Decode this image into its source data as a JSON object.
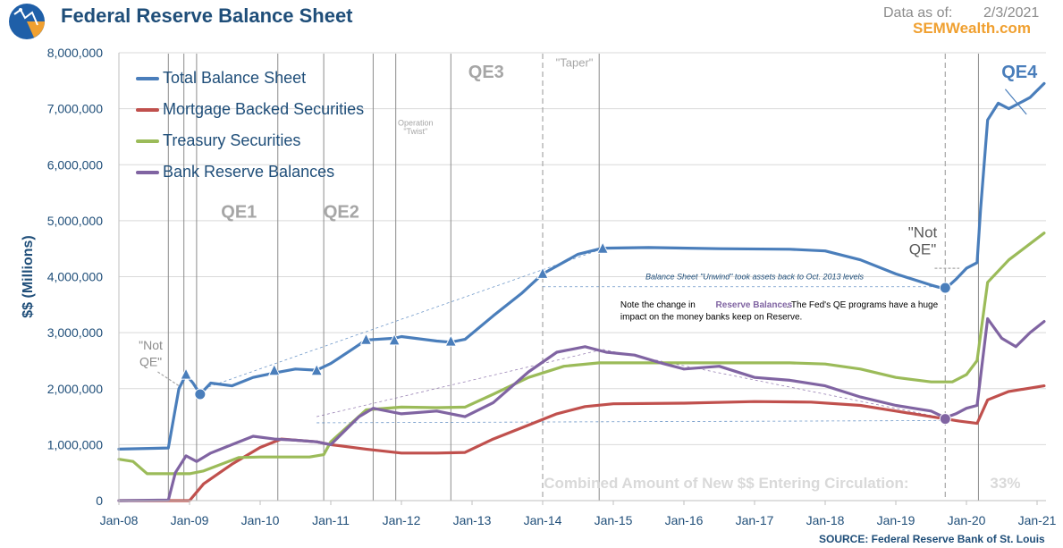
{
  "header": {
    "title": "Federal Reserve Balance Sheet",
    "asof_label": "Data as of:",
    "asof_date": "2/3/2021",
    "brand": "SEMWealth.com",
    "source": "SOURCE:  Federal Reserve Bank of St. Louis",
    "logo_icon": "globe-chart-logo-icon"
  },
  "colors": {
    "total": "#4a7ebb",
    "mbs": "#c0504d",
    "treasury": "#9bbb59",
    "reserves": "#8064a2",
    "accent_text": "#1f4e79",
    "annot_gray": "#a6a6a6",
    "brand": "#f0a030"
  },
  "chart_data": {
    "type": "line",
    "title": "Federal Reserve Balance Sheet",
    "ylabel": "$$ (Millions)",
    "xlabel": "",
    "ylim": [
      0,
      8000000
    ],
    "xlim": [
      2008.0,
      2021.1
    ],
    "yticks": [
      0,
      1000000,
      2000000,
      3000000,
      4000000,
      5000000,
      6000000,
      7000000,
      8000000
    ],
    "ytick_labels": [
      "0",
      "1,000,000",
      "2,000,000",
      "3,000,000",
      "4,000,000",
      "5,000,000",
      "6,000,000",
      "7,000,000",
      "8,000,000"
    ],
    "xticks": [
      2008,
      2009,
      2010,
      2011,
      2012,
      2013,
      2014,
      2015,
      2016,
      2017,
      2018,
      2019,
      2020,
      2021
    ],
    "xtick_labels": [
      "Jan-08",
      "Jan-09",
      "Jan-10",
      "Jan-11",
      "Jan-12",
      "Jan-13",
      "Jan-14",
      "Jan-15",
      "Jan-16",
      "Jan-17",
      "Jan-18",
      "Jan-19",
      "Jan-20",
      "Jan-21"
    ],
    "series": [
      {
        "name": "Total Balance Sheet",
        "x": [
          2008.0,
          2008.7,
          2008.85,
          2008.95,
          2009.05,
          2009.15,
          2009.3,
          2009.6,
          2009.9,
          2010.2,
          2010.5,
          2010.8,
          2011.0,
          2011.3,
          2011.5,
          2011.9,
          2012.0,
          2012.5,
          2012.7,
          2012.9,
          2013.3,
          2013.7,
          2014.0,
          2014.5,
          2014.85,
          2015.5,
          2016.5,
          2017.5,
          2018.0,
          2018.5,
          2019.0,
          2019.5,
          2019.7,
          2019.85,
          2020.0,
          2020.15,
          2020.2,
          2020.3,
          2020.45,
          2020.6,
          2020.9,
          2021.1
        ],
        "values": [
          920000,
          940000,
          2000000,
          2250000,
          2100000,
          1900000,
          2100000,
          2050000,
          2200000,
          2280000,
          2350000,
          2330000,
          2450000,
          2700000,
          2870000,
          2900000,
          2930000,
          2850000,
          2830000,
          2880000,
          3300000,
          3700000,
          4050000,
          4400000,
          4510000,
          4520000,
          4500000,
          4490000,
          4460000,
          4300000,
          4050000,
          3850000,
          3780000,
          3950000,
          4150000,
          4250000,
          5200000,
          6800000,
          7100000,
          7000000,
          7200000,
          7450000
        ]
      },
      {
        "name": "Mortgage Backed Securities",
        "x": [
          2008.0,
          2009.0,
          2009.2,
          2009.6,
          2010.0,
          2010.3,
          2010.8,
          2011.0,
          2011.5,
          2012.0,
          2012.5,
          2012.9,
          2013.3,
          2013.8,
          2014.2,
          2014.6,
          2015.0,
          2016.0,
          2017.0,
          2017.8,
          2018.5,
          2019.0,
          2019.5,
          2019.9,
          2020.15,
          2020.3,
          2020.6,
          2021.1
        ],
        "values": [
          0,
          0,
          300000,
          650000,
          950000,
          1100000,
          1050000,
          1000000,
          920000,
          850000,
          850000,
          860000,
          1100000,
          1350000,
          1550000,
          1680000,
          1730000,
          1740000,
          1770000,
          1760000,
          1700000,
          1600000,
          1500000,
          1420000,
          1380000,
          1800000,
          1950000,
          2050000
        ]
      },
      {
        "name": "Treasury Securities",
        "x": [
          2008.0,
          2008.2,
          2008.4,
          2009.0,
          2009.2,
          2009.7,
          2010.0,
          2010.7,
          2010.9,
          2011.0,
          2011.5,
          2012.0,
          2012.5,
          2012.9,
          2013.3,
          2013.8,
          2014.3,
          2014.8,
          2015.5,
          2016.5,
          2017.5,
          2018.0,
          2018.5,
          2019.0,
          2019.5,
          2019.8,
          2020.0,
          2020.15,
          2020.3,
          2020.6,
          2021.1
        ],
        "values": [
          740000,
          700000,
          480000,
          480000,
          530000,
          770000,
          780000,
          780000,
          820000,
          1050000,
          1620000,
          1670000,
          1660000,
          1670000,
          1900000,
          2200000,
          2400000,
          2460000,
          2460000,
          2460000,
          2460000,
          2440000,
          2350000,
          2200000,
          2120000,
          2120000,
          2250000,
          2500000,
          3900000,
          4300000,
          4780000
        ]
      },
      {
        "name": "Bank Reserve Balances",
        "x": [
          2008.0,
          2008.7,
          2008.8,
          2008.95,
          2009.1,
          2009.3,
          2009.6,
          2009.9,
          2010.2,
          2010.5,
          2010.8,
          2011.0,
          2011.4,
          2011.6,
          2012.0,
          2012.5,
          2012.9,
          2013.3,
          2013.8,
          2014.2,
          2014.6,
          2014.9,
          2015.3,
          2015.7,
          2016.0,
          2016.5,
          2017.0,
          2017.5,
          2018.0,
          2018.5,
          2019.0,
          2019.5,
          2019.7,
          2019.85,
          2020.0,
          2020.15,
          2020.3,
          2020.5,
          2020.7,
          2020.9,
          2021.1
        ],
        "values": [
          0,
          10000,
          500000,
          800000,
          700000,
          850000,
          1000000,
          1150000,
          1100000,
          1080000,
          1050000,
          1000000,
          1500000,
          1650000,
          1550000,
          1600000,
          1500000,
          1750000,
          2300000,
          2650000,
          2750000,
          2650000,
          2600000,
          2450000,
          2350000,
          2400000,
          2200000,
          2150000,
          2050000,
          1850000,
          1700000,
          1600000,
          1480000,
          1550000,
          1650000,
          1700000,
          3250000,
          2900000,
          2750000,
          3000000,
          3200000
        ]
      }
    ],
    "markers": [
      {
        "series": "Total Balance Sheet",
        "x": 2008.95,
        "value": 2250000,
        "shape": "triangle"
      },
      {
        "series": "Total Balance Sheet",
        "x": 2009.15,
        "value": 1900000,
        "shape": "circle"
      },
      {
        "series": "Total Balance Sheet",
        "x": 2010.2,
        "value": 2320000,
        "shape": "triangle"
      },
      {
        "series": "Total Balance Sheet",
        "x": 2010.8,
        "value": 2320000,
        "shape": "triangle"
      },
      {
        "series": "Total Balance Sheet",
        "x": 2011.5,
        "value": 2870000,
        "shape": "triangle"
      },
      {
        "series": "Total Balance Sheet",
        "x": 2011.9,
        "value": 2860000,
        "shape": "triangle"
      },
      {
        "series": "Total Balance Sheet",
        "x": 2012.7,
        "value": 2840000,
        "shape": "triangle"
      },
      {
        "series": "Total Balance Sheet",
        "x": 2014.0,
        "value": 4050000,
        "shape": "triangle"
      },
      {
        "series": "Total Balance Sheet",
        "x": 2014.85,
        "value": 4500000,
        "shape": "triangle"
      },
      {
        "series": "Total Balance Sheet",
        "x": 2019.7,
        "value": 3800000,
        "shape": "circle"
      },
      {
        "series": "Bank Reserve Balances",
        "x": 2019.7,
        "value": 1460000,
        "shape": "circle"
      }
    ],
    "vlines_solid": [
      2008.7,
      2008.92,
      2009.1,
      2010.25,
      2010.9,
      2011.6,
      2011.92,
      2012.7,
      2014.8,
      2020.17
    ],
    "vlines_dashed": [
      2014.0,
      2019.7
    ],
    "guides": [
      {
        "from": [
          2009.2,
          2000000
        ],
        "to": [
          2014.85,
          4500000
        ],
        "color": "#4a7ebb"
      },
      {
        "from": [
          2010.8,
          1500000
        ],
        "to": [
          2014.85,
          2700000
        ],
        "color": "#8064a2"
      },
      {
        "from": [
          2014.0,
          3820000
        ],
        "to": [
          2019.7,
          3820000
        ],
        "color": "#4a7ebb"
      },
      {
        "from": [
          2010.8,
          1390000
        ],
        "to": [
          2019.7,
          1430000
        ],
        "color": "#4a7ebb"
      },
      {
        "from": [
          2014.85,
          2700000
        ],
        "to": [
          2019.7,
          1470000
        ],
        "color": "#8064a2"
      }
    ],
    "annotations": {
      "qe1": {
        "text": "QE1",
        "x": 2009.7,
        "y": 5050000
      },
      "qe2": {
        "text": "QE2",
        "x": 2011.15,
        "y": 5050000
      },
      "qe3": {
        "text": "QE3",
        "x": 2013.2,
        "y": 7550000
      },
      "qe4": {
        "text": "QE4",
        "x": 2020.75,
        "y": 7550000
      },
      "taper": {
        "text": "\"Taper\"",
        "x": 2014.45,
        "y": 7750000
      },
      "twist_1": {
        "text": "Operation",
        "x": 2012.2,
        "y": 6700000
      },
      "twist_2": {
        "text": "\"Twist\"",
        "x": 2012.2,
        "y": 6550000
      },
      "notqe_left_1": {
        "text": "\"Not",
        "x": 2008.45,
        "y": 2700000
      },
      "notqe_left_2": {
        "text": "QE\"",
        "x": 2008.45,
        "y": 2400000
      },
      "notqe_right_1": {
        "text": "\"Not",
        "x": 2019.38,
        "y": 4700000
      },
      "notqe_right_2": {
        "text": "QE\"",
        "x": 2019.38,
        "y": 4400000
      },
      "unwind": {
        "text": "Balance Sheet \"Unwind\" took assets back to Oct. 2013 levels",
        "x": 2017.0,
        "y": 3950000
      },
      "note_prefix": {
        "text": "Note the change in",
        "x": 2015.1,
        "y": 3450000
      },
      "note_reserve": {
        "text": "Reserve Balances",
        "x": 2016.45,
        "y": 3450000
      },
      "note_suffix": {
        "text": ". The Fed's QE programs have a huge",
        "x": 2017.45,
        "y": 3450000
      },
      "note_line2": {
        "text": "impact on the money banks keep on Reserve.",
        "x": 2015.1,
        "y": 3230000
      },
      "combined_label": {
        "text": "Combined  Amount  of  New  $$  Entering  Circulation:",
        "x": 2016.6,
        "y": 220000
      },
      "combined_value": {
        "text": "33%",
        "x": 2020.55,
        "y": 220000
      }
    }
  }
}
